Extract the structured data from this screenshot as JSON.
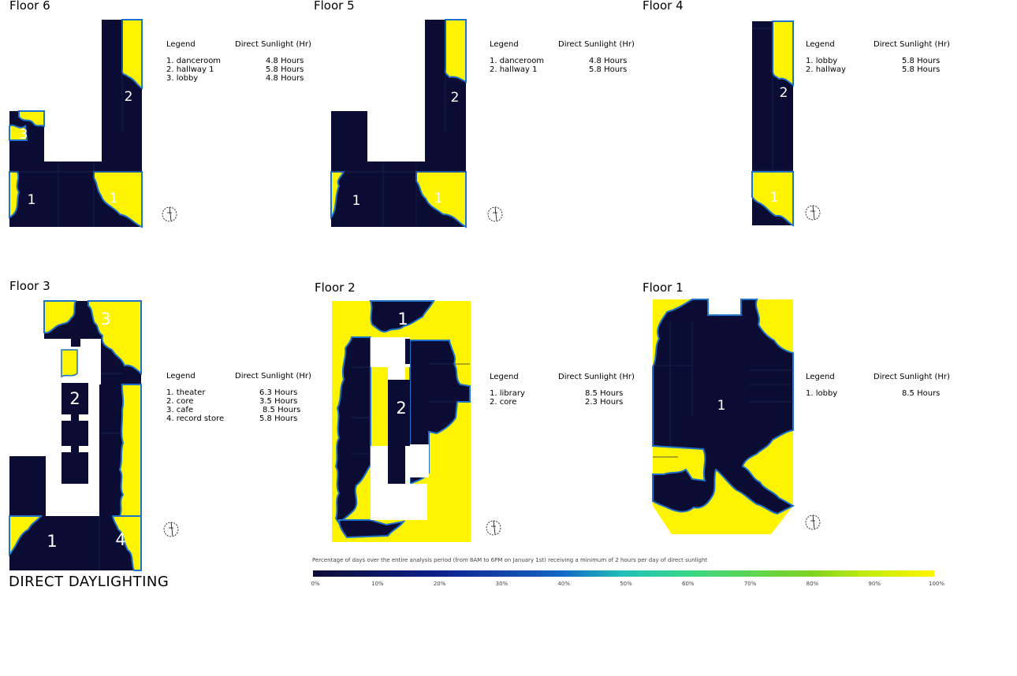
{
  "main_title": "DIRECT DAYLIGHTING",
  "legend_header": "Legend",
  "sunlight_header": "Direct Sunlight (Hr)",
  "colors": {
    "dark": "#0b0c33",
    "yellow": "#fff400",
    "edge": "#1e73c8"
  },
  "floors": [
    {
      "id": "6",
      "title": "Floor 6",
      "rows": [
        {
          "name": "1. danceroom",
          "hours": "4.8 Hours"
        },
        {
          "name": "2. hallway 1",
          "hours": "5.8 Hours"
        },
        {
          "name": "3. lobby",
          "hours": "4.8 Hours"
        }
      ]
    },
    {
      "id": "5",
      "title": "Floor 5",
      "rows": [
        {
          "name": "1. danceroom",
          "hours": "4.8 Hours"
        },
        {
          "name": "2. hallway 1",
          "hours": "5.8 Hours"
        }
      ]
    },
    {
      "id": "4",
      "title": "Floor 4",
      "rows": [
        {
          "name": "1. lobby",
          "hours": "5.8 Hours"
        },
        {
          "name": "2. hallway",
          "hours": "5.8 Hours"
        }
      ]
    },
    {
      "id": "3",
      "title": "Floor 3",
      "rows": [
        {
          "name": "1. theater",
          "hours": "6.3 Hours"
        },
        {
          "name": "2. core",
          "hours": "3.5 Hours"
        },
        {
          "name": "3. cafe",
          "hours": "8.5 Hours"
        },
        {
          "name": "4. record store",
          "hours": "5.8 Hours"
        }
      ]
    },
    {
      "id": "2",
      "title": "Floor 2",
      "rows": [
        {
          "name": "1. library",
          "hours": "8.5 Hours"
        },
        {
          "name": "2. core",
          "hours": "2.3 Hours"
        }
      ]
    },
    {
      "id": "1",
      "title": "Floor 1",
      "rows": [
        {
          "name": "1. lobby",
          "hours": "8.5 Hours"
        }
      ]
    }
  ],
  "room_labels": {
    "f6": [
      "1",
      "1",
      "2",
      "3"
    ],
    "f5": [
      "1",
      "1",
      "2"
    ],
    "f4": [
      "1",
      "2"
    ],
    "f3": [
      "1",
      "2",
      "3",
      "4"
    ],
    "f2": [
      "1",
      "2"
    ],
    "f1": [
      "1"
    ]
  },
  "scale": {
    "caption": "Percentage of days over the entire analysis period (from 8AM to 6PM on January 1st) receiving a minimum of 2 hours per day of direct sunlight",
    "ticks": [
      "0%",
      "10%",
      "20%",
      "30%",
      "40%",
      "50%",
      "60%",
      "70%",
      "80%",
      "90%",
      "100%"
    ]
  }
}
